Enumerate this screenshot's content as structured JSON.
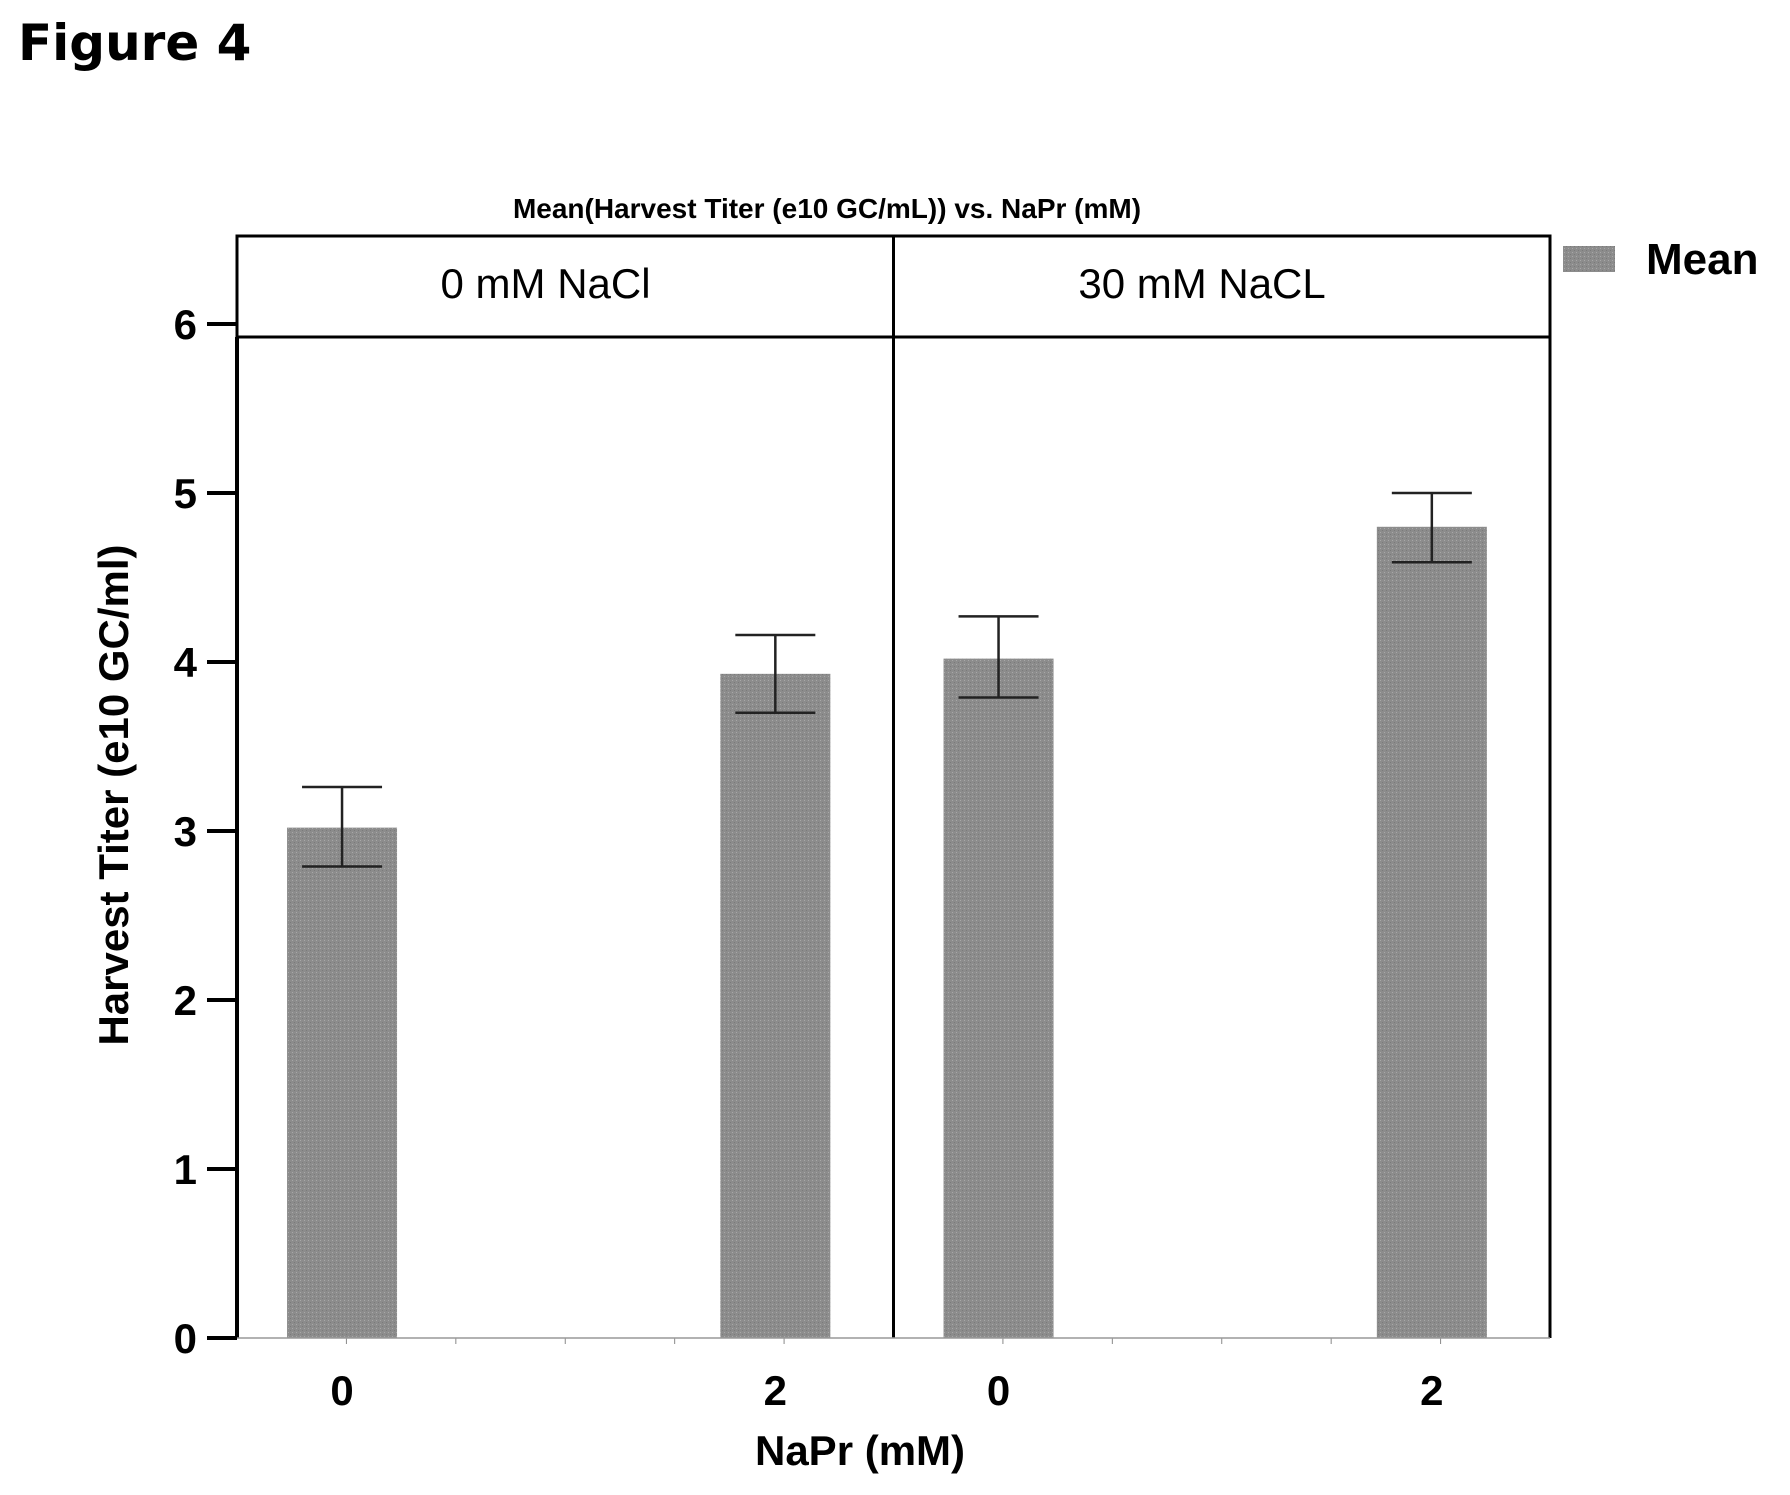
{
  "figure_label": "Figure 4",
  "colors": {
    "bar": "#8c8c8c",
    "axis": "#000000",
    "background": "#ffffff"
  },
  "chart_data": {
    "type": "bar",
    "title": "Mean(Harvest Titer (e10 GC/mL)) vs. NaPr (mM)",
    "xlabel": "NaPr (mM)",
    "ylabel": "Harvest Titer (e10 GC/ml)",
    "ylim": [
      0,
      6.5
    ],
    "yticks": [
      0,
      1,
      2,
      3,
      4,
      5,
      6
    ],
    "grid": false,
    "legend": {
      "position": "top-right",
      "entries": [
        "Mean"
      ]
    },
    "panels": [
      {
        "label": "0 mM NaCl",
        "categories": [
          "0",
          "2"
        ],
        "values": [
          3.02,
          3.93
        ],
        "error_low": [
          2.79,
          3.7
        ],
        "error_high": [
          3.26,
          4.16
        ]
      },
      {
        "label": "30 mM NaCL",
        "categories": [
          "0",
          "2"
        ],
        "values": [
          4.02,
          4.8
        ],
        "error_low": [
          3.79,
          4.59
        ],
        "error_high": [
          4.27,
          5.0
        ]
      }
    ]
  }
}
